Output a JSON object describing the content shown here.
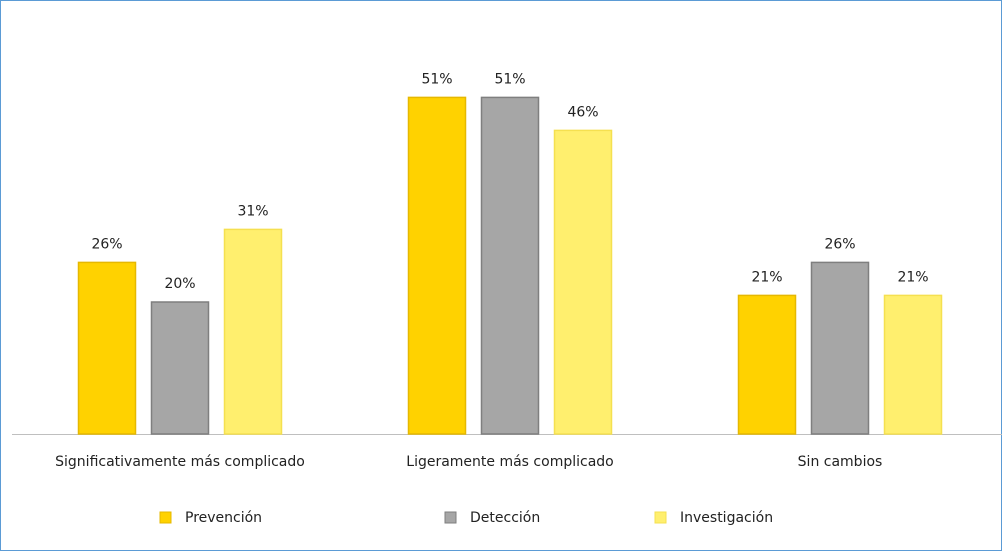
{
  "chart_data": {
    "type": "bar",
    "categories": [
      "Significativamente más complicado",
      "Ligeramente más complicado",
      "Sin cambios"
    ],
    "series": [
      {
        "name": "Prevención",
        "color": "#FFD200",
        "values": [
          26,
          51,
          21
        ],
        "value_labels": [
          "26%",
          "51%",
          "21%"
        ]
      },
      {
        "name": "Detección",
        "color": "#A6A6A6",
        "values": [
          20,
          51,
          26
        ],
        "value_labels": [
          "20%",
          "51%",
          "26%"
        ]
      },
      {
        "name": "Investigación",
        "color": "#FFEF6E",
        "values": [
          31,
          46,
          21
        ],
        "value_labels": [
          "31%",
          "46%",
          "21%"
        ]
      }
    ],
    "ylim": [
      0,
      60
    ]
  }
}
